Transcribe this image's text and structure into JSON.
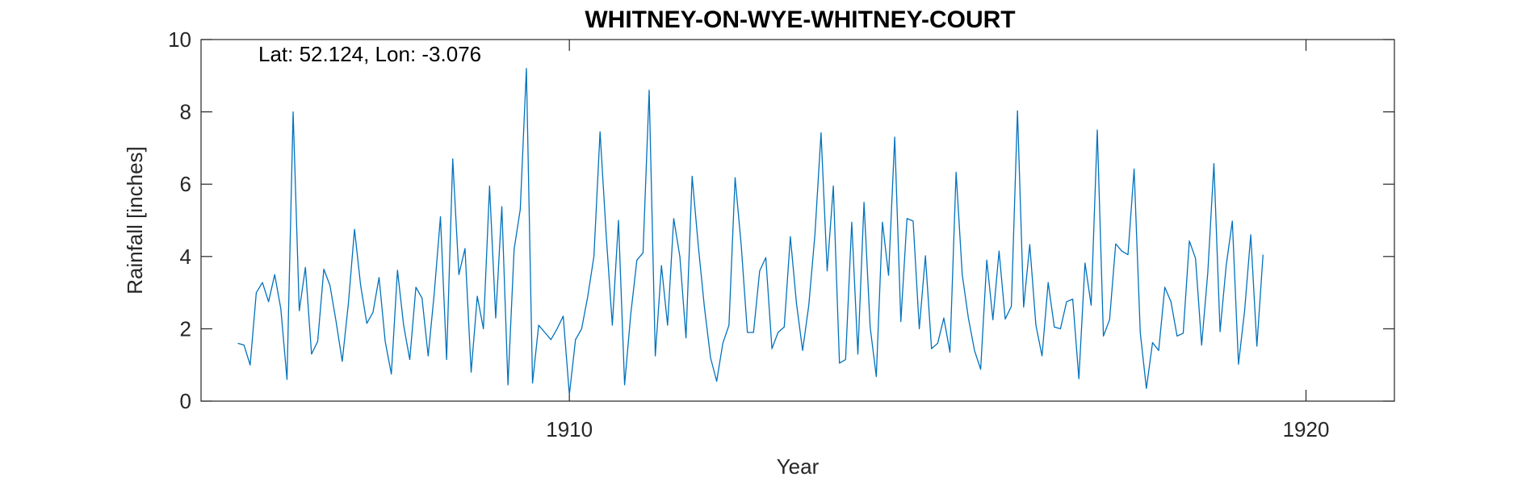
{
  "chart_data": {
    "type": "line",
    "title": "WHITNEY-ON-WYE-WHITNEY-COURT",
    "xlabel": "Year",
    "ylabel": "Rainfall [inches]",
    "annotation": "Lat: 52.124, Lon: -3.076",
    "xlim": [
      1905.0,
      1921.2
    ],
    "ylim": [
      0,
      10
    ],
    "x_ticks": [
      1910,
      1920
    ],
    "x_tick_labels": [
      "1910",
      "1920"
    ],
    "y_ticks": [
      0,
      2,
      4,
      6,
      8,
      10
    ],
    "y_tick_labels": [
      "0",
      "2",
      "4",
      "6",
      "8",
      "10"
    ],
    "grid": false,
    "line_color": "#0072BD",
    "series": [
      {
        "start_year": 1905,
        "start_month": 7,
        "frequency": "monthly",
        "values": [
          1.6,
          1.55,
          1.0,
          3.0,
          3.28,
          2.75,
          3.5,
          2.55,
          0.6,
          8.0,
          2.5,
          3.7,
          1.3,
          1.65,
          3.65,
          3.2,
          2.2,
          1.1,
          2.7,
          4.75,
          3.2,
          2.15,
          2.45,
          3.42,
          1.65,
          0.75,
          3.62,
          2.1,
          1.15,
          3.15,
          2.85,
          1.25,
          3.0,
          5.1,
          1.15,
          6.7,
          3.5,
          4.22,
          0.8,
          2.9,
          2.0,
          5.95,
          2.3,
          5.38,
          0.45,
          4.2,
          5.3,
          9.2,
          0.5,
          2.1,
          1.9,
          1.7,
          2.0,
          2.35,
          0.18,
          1.7,
          2.0,
          2.9,
          4.0,
          7.45,
          4.6,
          2.1,
          5.0,
          0.45,
          2.4,
          3.9,
          4.1,
          8.6,
          1.25,
          3.75,
          2.1,
          5.05,
          4.0,
          1.75,
          6.22,
          4.3,
          2.6,
          1.2,
          0.55,
          1.6,
          2.1,
          6.18,
          4.3,
          1.9,
          1.9,
          3.6,
          3.97,
          1.45,
          1.9,
          2.05,
          4.55,
          2.7,
          1.4,
          2.65,
          4.6,
          7.42,
          3.6,
          5.95,
          1.05,
          1.15,
          4.95,
          1.3,
          5.5,
          2.05,
          0.68,
          4.95,
          3.48,
          7.3,
          2.2,
          5.05,
          4.98,
          2.0,
          4.02,
          1.45,
          1.6,
          2.3,
          1.35,
          6.33,
          3.5,
          2.3,
          1.4,
          0.88,
          3.9,
          2.25,
          4.15,
          2.27,
          2.62,
          8.03,
          2.6,
          4.33,
          2.1,
          1.25,
          3.28,
          2.05,
          2.0,
          2.75,
          2.82,
          0.62,
          3.82,
          2.65,
          7.5,
          1.8,
          2.25,
          4.35,
          4.15,
          4.05,
          6.42,
          1.9,
          0.35,
          1.62,
          1.4,
          3.15,
          2.75,
          1.8,
          1.88,
          4.43,
          3.95,
          1.55,
          3.55,
          6.57,
          1.92,
          3.75,
          4.98,
          1.02,
          2.5,
          4.6,
          1.52,
          4.05
        ]
      }
    ]
  }
}
